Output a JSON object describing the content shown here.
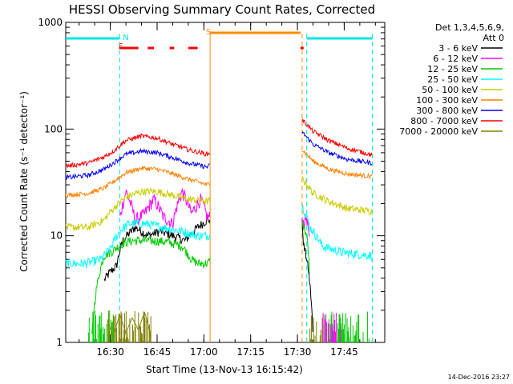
{
  "chart_data": {
    "type": "line",
    "title": "HESSI Observing Summary Count Rates, Corrected",
    "xlabel": "Start Time (13-Nov-13 16:15:42)",
    "ylabel": "Corrected Count Rate (s⁻¹ detector⁻¹)",
    "y_scale": "log",
    "ylim": [
      1,
      1000
    ],
    "xlim": [
      "16:15:42",
      "17:58:00"
    ],
    "x_unit": "time (UT, 13-Nov-13)",
    "x_ticks": [
      "16:30",
      "16:45",
      "17:00",
      "17:15",
      "17:30",
      "17:45"
    ],
    "y_ticks": [
      "1",
      "10",
      "100",
      "1000"
    ],
    "legend": {
      "title": "Det 1,3,4,5,6,9,",
      "subtitle": "Att 0",
      "placement": "right"
    },
    "footer": "14-Dec-2016 23:27",
    "annotations": [
      {
        "label": "N",
        "color": "#00e5e5"
      },
      {
        "label": "F",
        "color": "#ff0000"
      },
      {
        "label": "S",
        "color": "#ff8c00"
      }
    ],
    "markers": [
      {
        "time": "16:33:00",
        "kind": "night-end",
        "color": "#00e5e5"
      },
      {
        "time": "17:02:00",
        "kind": "saa-start",
        "color": "#ff8c00"
      },
      {
        "time": "17:31:30",
        "kind": "saa-end",
        "color": "#ff8c00"
      },
      {
        "time": "17:33:00",
        "kind": "night-start",
        "color": "#00e5e5"
      },
      {
        "time": "17:54:00",
        "kind": "night-end",
        "color": "#00e5e5"
      }
    ],
    "bars": {
      "night": {
        "color": "#00e5e5",
        "ranges": [
          [
            "16:15:42",
            "16:33:00"
          ],
          [
            "17:33:00",
            "17:54:00"
          ]
        ]
      },
      "flare": {
        "color": "#ff0000",
        "ranges": [
          [
            "16:33:00",
            "16:39:00"
          ],
          [
            "16:42:00",
            "16:44:00"
          ],
          [
            "16:49:00",
            "16:50:30"
          ],
          [
            "16:55:00",
            "16:58:00"
          ],
          [
            "17:31:00",
            "17:32:00"
          ]
        ]
      },
      "saa": {
        "color": "#ff8c00",
        "ranges": [
          [
            "17:02:00",
            "17:31:00"
          ]
        ]
      }
    },
    "gap": [
      "17:02:00",
      "17:31:30"
    ],
    "series": [
      {
        "name": "3 - 6 keV",
        "color": "#000000",
        "x": [
          "16:15:42",
          "16:26:00",
          "16:28:00",
          "16:30:00",
          "16:32:00",
          "16:34:00",
          "16:38:00",
          "16:42:00",
          "16:46:00",
          "16:50:00",
          "16:54:00",
          "16:58:00",
          "17:01:00",
          "17:31:00",
          "17:32:00",
          "17:33:00",
          "17:35:00"
        ],
        "y": [
          null,
          null,
          3.8,
          4.6,
          5.2,
          9,
          12,
          10,
          11,
          10,
          9,
          12,
          14,
          18,
          8,
          6,
          1
        ]
      },
      {
        "name": "6 - 12 keV",
        "color": "#ff00ff",
        "x": [
          "16:15:42",
          "16:30:00",
          "16:33:00",
          "16:35:00",
          "16:38:00",
          "16:41:00",
          "16:44:00",
          "16:47:00",
          "16:50:00",
          "16:53:00",
          "16:56:00",
          "16:59:00",
          "17:01:00",
          "17:31:00",
          "17:32:00",
          "17:33:00",
          "17:34:00"
        ],
        "y": [
          null,
          null,
          14,
          26,
          14,
          16,
          22,
          15,
          13,
          26,
          16,
          22,
          15,
          17,
          13,
          15,
          8
        ]
      },
      {
        "name": "12 - 25 keV",
        "color": "#00cc00",
        "x": [
          "16:15:42",
          "16:24:00",
          "16:28:00",
          "16:31:00",
          "16:34:00",
          "16:37:00",
          "16:42:00",
          "16:48:00",
          "16:53:00",
          "16:56:00",
          "16:58:00",
          "17:01:00",
          "17:31:00",
          "17:32:00",
          "17:33:00",
          "17:34:00"
        ],
        "y": [
          null,
          1,
          6.5,
          7.3,
          8.5,
          9,
          9,
          8.8,
          8,
          6,
          5.5,
          5.5,
          15,
          12,
          10,
          4
        ]
      },
      {
        "name": "25 - 50 keV",
        "color": "#00ffff",
        "x": [
          "16:15:42",
          "16:22:00",
          "16:27:00",
          "16:30:00",
          "16:33:00",
          "16:36:00",
          "16:41:00",
          "16:47:00",
          "16:53:00",
          "16:58:00",
          "17:01:00",
          "17:31:00",
          "17:32:00",
          "17:34:00",
          "17:38:00",
          "17:44:00",
          "17:54:00"
        ],
        "y": [
          5.5,
          5.5,
          6,
          7.5,
          11,
          13,
          13,
          12,
          11,
          10,
          10,
          20,
          18,
          12,
          8,
          7,
          6.5
        ]
      },
      {
        "name": "50 - 100 keV",
        "color": "#cccc00",
        "x": [
          "16:15:42",
          "16:23:00",
          "16:28:00",
          "16:31:00",
          "16:35:00",
          "16:40:00",
          "16:45:00",
          "16:50:00",
          "16:55:00",
          "17:01:00",
          "17:31:00",
          "17:32:00",
          "17:35:00",
          "17:40:00",
          "17:46:00",
          "17:54:00"
        ],
        "y": [
          12,
          12,
          14,
          18,
          23,
          26,
          26,
          24,
          22,
          21,
          35,
          33,
          25,
          21,
          18,
          17
        ]
      },
      {
        "name": "100 - 300 keV",
        "color": "#ff8000",
        "x": [
          "16:15:42",
          "16:23:00",
          "16:28:00",
          "16:31:00",
          "16:35:00",
          "16:40:00",
          "16:45:00",
          "16:50:00",
          "16:55:00",
          "17:01:00",
          "17:31:00",
          "17:32:00",
          "17:35:00",
          "17:40:00",
          "17:46:00",
          "17:54:00"
        ],
        "y": [
          24,
          25,
          28,
          32,
          39,
          43,
          42,
          38,
          34,
          30,
          68,
          62,
          50,
          42,
          38,
          36
        ]
      },
      {
        "name": "300 - 800 keV",
        "color": "#0000ff",
        "x": [
          "16:15:42",
          "16:23:00",
          "16:28:00",
          "16:31:00",
          "16:35:00",
          "16:40:00",
          "16:45:00",
          "16:50:00",
          "16:55:00",
          "17:01:00",
          "17:31:00",
          "17:32:00",
          "17:35:00",
          "17:40:00",
          "17:46:00",
          "17:54:00"
        ],
        "y": [
          35,
          37,
          42,
          48,
          58,
          62,
          60,
          54,
          48,
          44,
          98,
          90,
          72,
          60,
          52,
          48
        ]
      },
      {
        "name": "800 - 7000 keV",
        "color": "#ff0000",
        "x": [
          "16:15:42",
          "16:23:00",
          "16:28:00",
          "16:31:00",
          "16:35:00",
          "16:40:00",
          "16:45:00",
          "16:50:00",
          "16:55:00",
          "17:01:00",
          "17:31:00",
          "17:32:00",
          "17:35:00",
          "17:40:00",
          "17:46:00",
          "17:54:00"
        ],
        "y": [
          45,
          48,
          55,
          62,
          78,
          86,
          82,
          72,
          64,
          58,
          125,
          118,
          95,
          78,
          66,
          57
        ]
      },
      {
        "name": "7000 - 20000 keV",
        "color": "#808000",
        "x": [
          "16:29:00",
          "16:31:00",
          "16:33:00",
          "16:35:00",
          "16:37:00",
          "16:39:00",
          "16:41:00",
          "16:43:00"
        ],
        "y": [
          1.6,
          1.1,
          1.8,
          1.2,
          1.7,
          1.3,
          1.9,
          1.1
        ]
      }
    ]
  }
}
